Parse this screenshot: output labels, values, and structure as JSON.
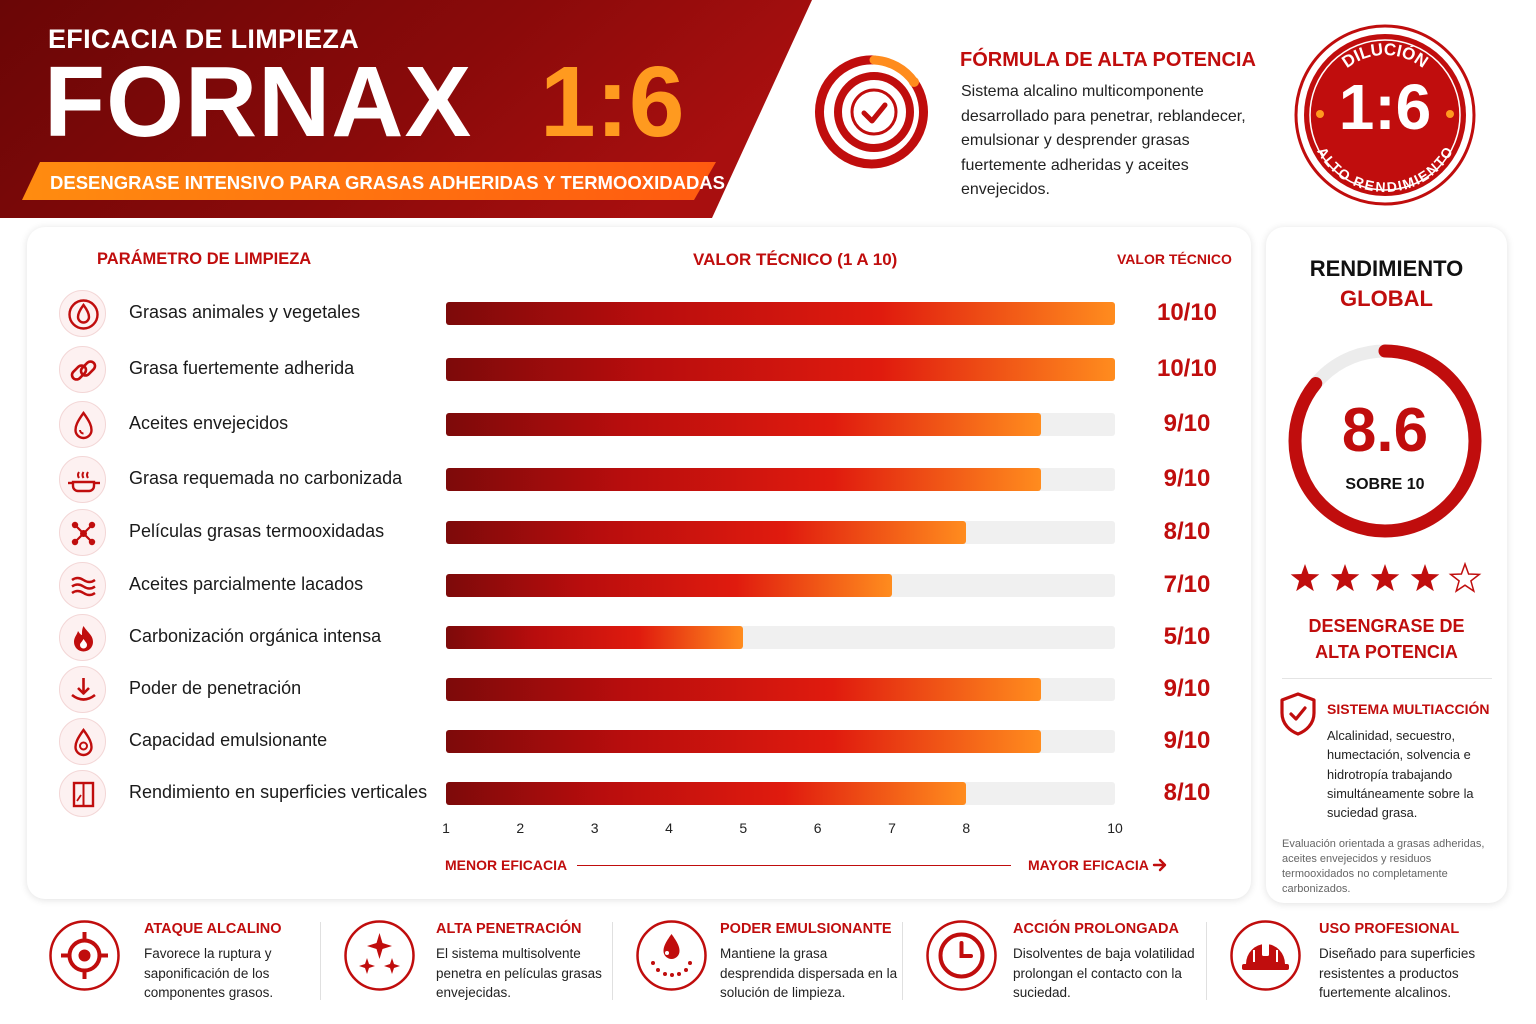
{
  "header": {
    "kicker": "EFICACIA DE LIMPIEZA",
    "brand": "FORNAX",
    "ratio": "1:6",
    "tagline": "DESENGRASE INTENSIVO PARA GRASAS ADHERIDAS Y TERMOOXIDADAS",
    "colors": {
      "dark_red": "#7d0a0a",
      "red": "#c00d0d",
      "orange": "#ff9a1f"
    }
  },
  "formula": {
    "icon": "target-check-icon",
    "title": "FÓRMULA DE ALTA POTENCIA",
    "text": "Sistema alcalino multicomponente desarrollado para penetrar, reblandecer, emulsionar y desprender grasas fuertemente adheridas y aceites envejecidos."
  },
  "stamp": {
    "top_text": "DILUCIÓN",
    "ratio": "1:6",
    "bottom_text": "ALTO RENDIMIENTO"
  },
  "chart_data": {
    "type": "bar",
    "orientation": "horizontal",
    "title": "",
    "column_headers": {
      "parameter": "PARÁMETRO DE LIMPIEZA",
      "value": "VALOR TÉCNICO (1 A 10)",
      "technical": "VALOR TÉCNICO"
    },
    "categories": [
      "Grasas animales y vegetales",
      "Grasa fuertemente adherida",
      "Aceites envejecidos",
      "Grasa requemada no carbonizada",
      "Películas grasas termooxidadas",
      "Aceites parcialmente lacados",
      "Carbonización orgánica intensa",
      "Poder de penetración",
      "Capacidad emulsionante",
      "Rendimiento en superficies verticales"
    ],
    "values": [
      10,
      10,
      9,
      9,
      8,
      7,
      5,
      9,
      9,
      8
    ],
    "value_labels": [
      "10/10",
      "10/10",
      "9/10",
      "9/10",
      "8/10",
      "7/10",
      "5/10",
      "9/10",
      "9/10",
      "8/10"
    ],
    "icons": [
      "drop-in-circle-icon",
      "chain-link-icon",
      "oil-drop-icon",
      "steaming-pan-icon",
      "molecule-icon",
      "layers-icon",
      "flame-icon",
      "penetration-arrow-icon",
      "emulsion-drop-icon",
      "vertical-panel-icon"
    ],
    "x_ticks": [
      "1",
      "2",
      "3",
      "4",
      "5",
      "6",
      "7",
      "8",
      "10"
    ],
    "xlim": [
      1,
      10
    ],
    "axis_left_label": "MENOR EFICACIA",
    "axis_right_label": "MAYOR EFICACIA",
    "grid": false
  },
  "summary": {
    "title_line1": "RENDIMIENTO",
    "title_line2": "GLOBAL",
    "score": "8.6",
    "score_value": 8.6,
    "score_max": 10,
    "score_sub": "SOBRE 10",
    "stars_filled": 4,
    "stars_total": 5,
    "desc_line1": "DESENGRASE DE",
    "desc_line2": "ALTA POTENCIA",
    "multi_icon": "shield-check-icon",
    "multi_title": "SISTEMA MULTIACCIÓN",
    "multi_text": "Alcalinidad, secuestro, humectación, solvencia e hidrotropía trabajando simultáneamente sobre la suciedad grasa.",
    "note": "Evaluación orientada a grasas adheridas, aceites envejecidos y residuos termooxidados no completamente carbonizados."
  },
  "features": [
    {
      "icon": "crosshair-icon",
      "title": "ATAQUE ALCALINO",
      "text": "Favorece la ruptura y saponificación de los componentes grasos."
    },
    {
      "icon": "sparkles-icon",
      "title": "ALTA PENETRACIÓN",
      "text": "El sistema multisolvente penetra en películas grasas envejecidas."
    },
    {
      "icon": "dispersed-drop-icon",
      "title": "PODER EMULSIONANTE",
      "text": "Mantiene la grasa desprendida dispersada en la solución de limpieza."
    },
    {
      "icon": "clock-icon",
      "title": "ACCIÓN PROLONGADA",
      "text": "Disolventes de baja volatilidad prolongan el contacto con la suciedad."
    },
    {
      "icon": "hard-hat-icon",
      "title": "USO PROFESIONAL",
      "text": "Diseñado para superficies resistentes a productos fuertemente alcalinos."
    }
  ]
}
